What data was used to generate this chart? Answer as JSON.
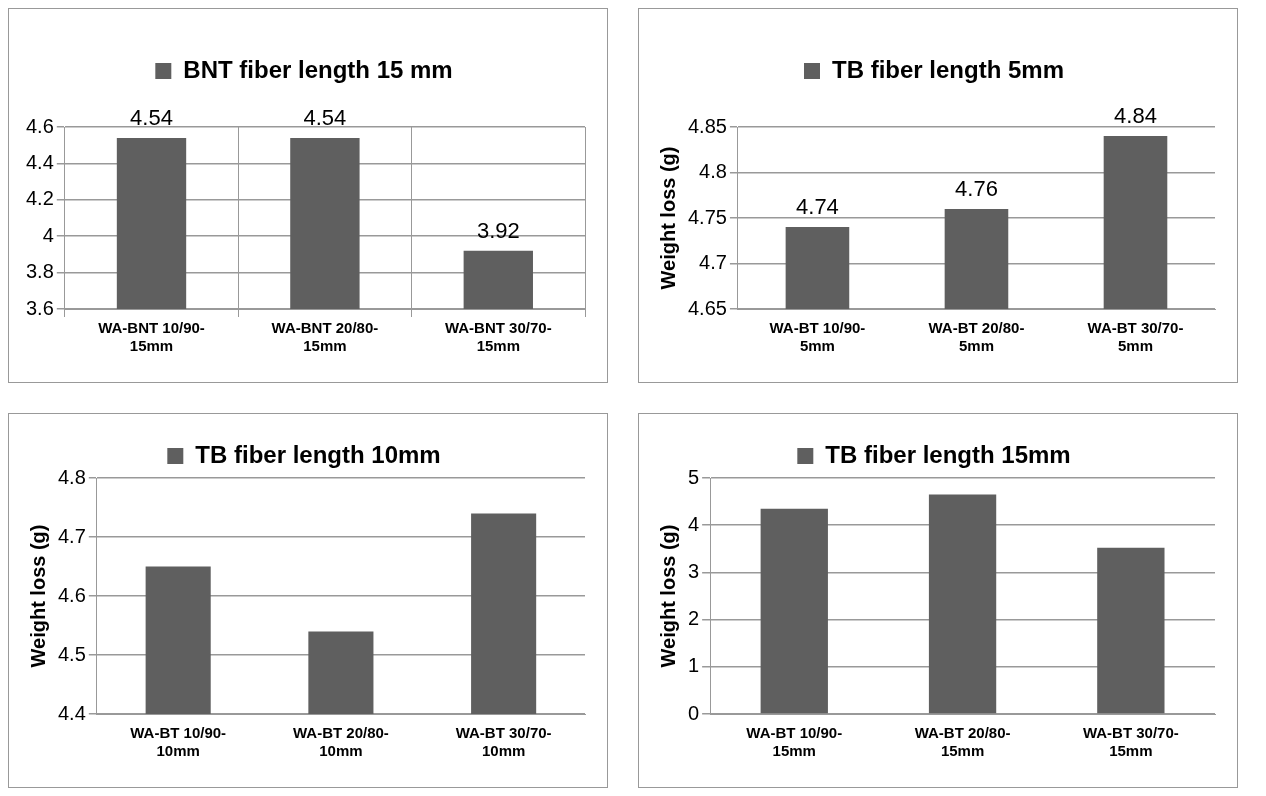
{
  "chart_data": [
    {
      "type": "bar",
      "categories": [
        "WA-BNT 10/90-15mm",
        "WA-BNT 20/80-15mm",
        "WA-BNT 30/70-15mm"
      ],
      "series": [
        {
          "name": "BNT fiber length 15 mm",
          "color": "#5f5f5f",
          "values": [
            4.54,
            4.54,
            3.92
          ]
        }
      ],
      "ylim": [
        3.6,
        4.6
      ],
      "yticks": [
        3.6,
        3.8,
        4,
        4.2,
        4.4,
        4.6
      ],
      "grid": true,
      "legend": "top",
      "data_labels": true
    },
    {
      "type": "bar",
      "categories": [
        "WA-BT 10/90-5mm",
        "WA-BT 20/80-5mm",
        "WA-BT 30/70-5mm"
      ],
      "series": [
        {
          "name": "TB fiber length 5mm",
          "color": "#5f5f5f",
          "values": [
            4.74,
            4.76,
            4.84
          ]
        }
      ],
      "ylabel": "Weight loss (g)",
      "ylim": [
        4.65,
        4.85
      ],
      "yticks": [
        4.65,
        4.7,
        4.75,
        4.8,
        4.85
      ],
      "grid": "y",
      "legend": "top",
      "data_labels": true
    },
    {
      "type": "bar",
      "categories": [
        "WA-BT 10/90-10mm",
        "WA-BT 20/80-10mm",
        "WA-BT 30/70-10mm"
      ],
      "series": [
        {
          "name": "TB fiber length 10mm",
          "color": "#5f5f5f",
          "values": [
            4.65,
            4.54,
            4.74
          ]
        }
      ],
      "ylabel": "Weight loss (g)",
      "ylim": [
        4.4,
        4.8
      ],
      "yticks": [
        4.4,
        4.5,
        4.6,
        4.7,
        4.8
      ],
      "grid": "y",
      "legend": "top"
    },
    {
      "type": "bar",
      "categories": [
        "WA-BT 10/90-15mm",
        "WA-BT 20/80-15mm",
        "WA-BT 30/70-15mm"
      ],
      "series": [
        {
          "name": "TB fiber length 15mm",
          "color": "#5f5f5f",
          "values": [
            4.35,
            4.65,
            3.52
          ]
        }
      ],
      "ylabel": "Weight loss (g)",
      "ylim": [
        0,
        5
      ],
      "yticks": [
        0,
        1,
        2,
        3,
        4,
        5
      ],
      "grid": "y",
      "legend": "top"
    }
  ]
}
